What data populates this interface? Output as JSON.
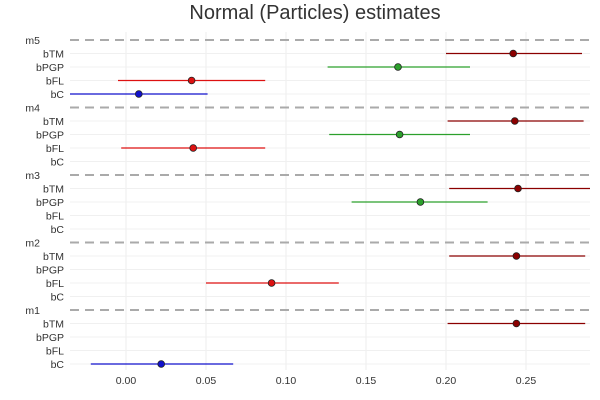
{
  "chart_data": {
    "type": "forest",
    "title": "Normal (Particles) estimates",
    "xlabel": "",
    "ylabel": "",
    "xlim": [
      -0.035,
      0.29
    ],
    "xticks": [
      0.0,
      0.05,
      0.1,
      0.15,
      0.2,
      0.25
    ],
    "xtick_labels": [
      "0.00",
      "0.05",
      "0.10",
      "0.15",
      "0.20",
      "0.25"
    ],
    "grid": true,
    "parameter_order": [
      "bTM",
      "bPGP",
      "bFL",
      "bC"
    ],
    "colors": {
      "bTM": "#8b0000",
      "bPGP": "#2ca02c",
      "bFL": "#dd1111",
      "bC": "#1010cc",
      "group_separator": "#aaaaaa"
    },
    "groups": [
      {
        "name": "m5",
        "estimates": [
          {
            "param": "bTM",
            "mean": 0.242,
            "low": 0.2,
            "high": 0.285
          },
          {
            "param": "bPGP",
            "mean": 0.17,
            "low": 0.126,
            "high": 0.215
          },
          {
            "param": "bFL",
            "mean": 0.041,
            "low": -0.005,
            "high": 0.087
          },
          {
            "param": "bC",
            "mean": 0.008,
            "low": -0.036,
            "high": 0.051
          }
        ]
      },
      {
        "name": "m4",
        "estimates": [
          {
            "param": "bTM",
            "mean": 0.243,
            "low": 0.201,
            "high": 0.286
          },
          {
            "param": "bPGP",
            "mean": 0.171,
            "low": 0.127,
            "high": 0.215
          },
          {
            "param": "bFL",
            "mean": 0.042,
            "low": -0.003,
            "high": 0.087
          }
        ]
      },
      {
        "name": "m3",
        "estimates": [
          {
            "param": "bTM",
            "mean": 0.245,
            "low": 0.202,
            "high": 0.29
          },
          {
            "param": "bPGP",
            "mean": 0.184,
            "low": 0.141,
            "high": 0.226
          }
        ]
      },
      {
        "name": "m2",
        "estimates": [
          {
            "param": "bTM",
            "mean": 0.244,
            "low": 0.202,
            "high": 0.287
          },
          {
            "param": "bFL",
            "mean": 0.091,
            "low": 0.05,
            "high": 0.133
          }
        ]
      },
      {
        "name": "m1",
        "estimates": [
          {
            "param": "bTM",
            "mean": 0.244,
            "low": 0.201,
            "high": 0.287
          },
          {
            "param": "bC",
            "mean": 0.022,
            "low": -0.022,
            "high": 0.067
          }
        ]
      }
    ]
  }
}
